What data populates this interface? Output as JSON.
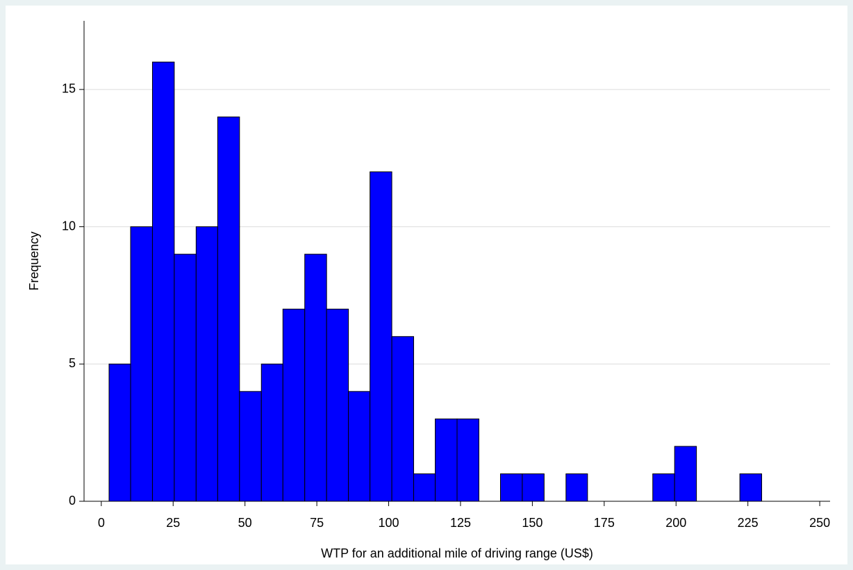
{
  "chart_data": {
    "type": "histogram",
    "x_label": "WTP for an additional mile of driving range (US$)",
    "y_label": "Frequency",
    "bins": [
      2.7,
      10.2,
      17.8,
      25.4,
      33.0,
      40.5,
      48.1,
      55.7,
      63.2,
      70.8,
      78.4,
      86.0,
      93.5,
      101.1,
      108.7,
      116.2,
      123.8,
      131.4,
      138.9,
      146.5,
      154.1,
      161.7,
      169.2,
      176.8,
      184.4,
      191.9,
      199.5,
      207.1,
      214.6,
      222.2,
      229.8
    ],
    "values": [
      5,
      10,
      16,
      9,
      10,
      14,
      4,
      5,
      7,
      9,
      7,
      4,
      12,
      6,
      1,
      3,
      3,
      0,
      1,
      1,
      0,
      1,
      0,
      0,
      0,
      1,
      2,
      0,
      0,
      1
    ],
    "color": "#0000ff",
    "xlim": [
      -6,
      253.6
    ],
    "ylim": [
      0,
      17.5
    ],
    "xticks": [
      0,
      25,
      50,
      75,
      100,
      125,
      150,
      175,
      200,
      225,
      250
    ],
    "yticks": [
      0,
      5,
      10,
      15
    ],
    "grid": true
  }
}
